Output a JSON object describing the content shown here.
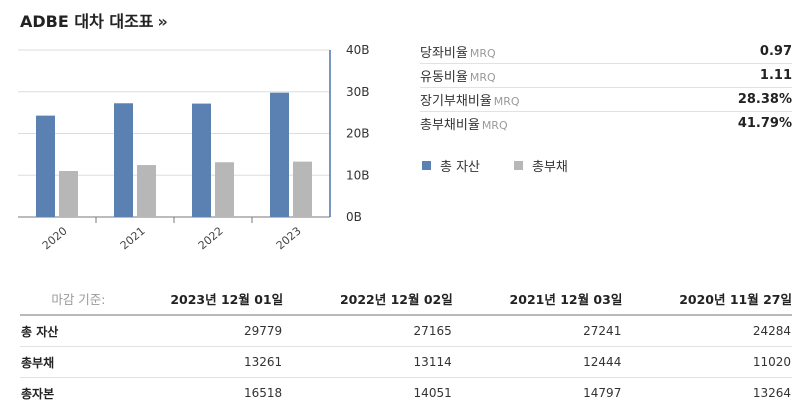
{
  "header": {
    "title": "ADBE 대차 대조표",
    "more": "»"
  },
  "chart_data": {
    "type": "bar",
    "categories": [
      "2020",
      "2021",
      "2022",
      "2023"
    ],
    "series": [
      {
        "name": "총 자산",
        "values": [
          24284,
          27241,
          27165,
          29779
        ],
        "color": "#5b80b2"
      },
      {
        "name": "총부채",
        "values": [
          11020,
          12444,
          13114,
          13261
        ],
        "color": "#b7b7b7"
      }
    ],
    "y_ticks": [
      "0B",
      "10B",
      "20B",
      "30B",
      "40B"
    ],
    "ylim": [
      0,
      40000
    ],
    "grid": true,
    "legend_placement": "right of chart"
  },
  "ratios": [
    {
      "name": "당좌비율",
      "suffix": "MRQ",
      "value": "0.97"
    },
    {
      "name": "유동비율",
      "suffix": "MRQ",
      "value": "1.11"
    },
    {
      "name": "장기부채비율",
      "suffix": "MRQ",
      "value": "28.38%"
    },
    {
      "name": "총부채비율",
      "suffix": "MRQ",
      "value": "41.79%"
    }
  ],
  "table": {
    "basis_label": "마감 기준:",
    "dates": [
      "2023년 12월 01일",
      "2022년 12월 02일",
      "2021년 12월 03일",
      "2020년 11월 27일"
    ],
    "rows": [
      {
        "label": "총 자산",
        "values": [
          "29779",
          "27165",
          "27241",
          "24284"
        ]
      },
      {
        "label": "총부채",
        "values": [
          "13261",
          "13114",
          "12444",
          "11020"
        ]
      },
      {
        "label": "총자본",
        "values": [
          "16518",
          "14051",
          "14797",
          "13264"
        ]
      }
    ]
  }
}
